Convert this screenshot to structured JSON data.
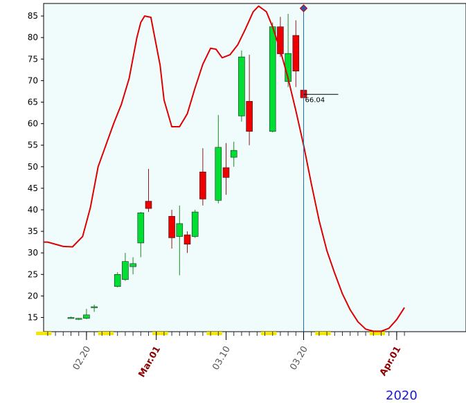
{
  "chart_data": {
    "type": "candlestick",
    "year_label": "2020",
    "ylim": [
      12,
      87
    ],
    "yticks": [
      15,
      20,
      25,
      30,
      35,
      40,
      45,
      50,
      55,
      60,
      65,
      70,
      75,
      80,
      85
    ],
    "x_tick_labels": [
      {
        "label": "02.20",
        "day": 20,
        "color": "#555555"
      },
      {
        "label": "Mar.01",
        "day": 29,
        "color": "#8b0000"
      },
      {
        "label": "03.10",
        "day": 38,
        "color": "#555555"
      },
      {
        "label": "03.20",
        "day": 48,
        "color": "#555555"
      },
      {
        "label": "Apr.01",
        "day": 60,
        "color": "#8b0000"
      }
    ],
    "cursor": {
      "day": 48,
      "value_label": "66.04",
      "value": 66.04
    },
    "colors": {
      "up": "#00dd33",
      "down": "#ee0000",
      "line": "#dd0000",
      "plot_bg": "#f0fcfc",
      "cursor": "#1a6fb0",
      "weekend": "#f5e600"
    },
    "candles": [
      {
        "day": 18,
        "open": 15.0,
        "high": 15.2,
        "low": 14.9,
        "close": 15.0
      },
      {
        "day": 19,
        "open": 14.6,
        "high": 14.9,
        "low": 14.4,
        "close": 14.8
      },
      {
        "day": 20,
        "open": 14.8,
        "high": 17.0,
        "low": 14.6,
        "close": 15.6
      },
      {
        "day": 21,
        "open": 17.3,
        "high": 18.0,
        "low": 16.3,
        "close": 17.5
      },
      {
        "day": 24,
        "open": 22.2,
        "high": 25.5,
        "low": 22.0,
        "close": 25.0
      },
      {
        "day": 25,
        "open": 23.8,
        "high": 30.0,
        "low": 23.5,
        "close": 28.0
      },
      {
        "day": 26,
        "open": 26.8,
        "high": 29.0,
        "low": 25.0,
        "close": 27.5
      },
      {
        "day": 27,
        "open": 32.3,
        "high": 39.5,
        "low": 29.0,
        "close": 39.3
      },
      {
        "day": 28,
        "open": 42.0,
        "high": 49.5,
        "low": 39.5,
        "close": 40.3
      },
      {
        "day": 31,
        "open": 38.5,
        "high": 40.0,
        "low": 31.0,
        "close": 33.5
      },
      {
        "day": 32,
        "open": 33.8,
        "high": 41.0,
        "low": 24.8,
        "close": 36.8
      },
      {
        "day": 33,
        "open": 34.2,
        "high": 35.0,
        "low": 30.0,
        "close": 32.0
      },
      {
        "day": 34,
        "open": 33.8,
        "high": 40.0,
        "low": 33.5,
        "close": 39.5
      },
      {
        "day": 35,
        "open": 48.8,
        "high": 54.3,
        "low": 41.0,
        "close": 42.5
      },
      {
        "day": 37,
        "open": 42.2,
        "high": 62.0,
        "low": 41.5,
        "close": 54.5
      },
      {
        "day": 38,
        "open": 49.8,
        "high": 55.5,
        "low": 43.5,
        "close": 47.5
      },
      {
        "day": 39,
        "open": 52.2,
        "high": 55.8,
        "low": 50.0,
        "close": 53.8
      },
      {
        "day": 40,
        "open": 61.8,
        "high": 77.0,
        "low": 60.5,
        "close": 75.5
      },
      {
        "day": 41,
        "open": 65.2,
        "high": 76.0,
        "low": 55.0,
        "close": 58.2
      },
      {
        "day": 44,
        "open": 58.2,
        "high": 83.5,
        "low": 58.0,
        "close": 82.5
      },
      {
        "day": 45,
        "open": 82.5,
        "high": 84.8,
        "low": 75.5,
        "close": 76.2
      },
      {
        "day": 46,
        "open": 69.8,
        "high": 85.5,
        "low": 68.5,
        "close": 76.3
      },
      {
        "day": 47,
        "open": 80.5,
        "high": 84.0,
        "low": 68.5,
        "close": 72.2
      },
      {
        "day": 48,
        "open": 67.8,
        "high": 68.0,
        "low": 66.0,
        "close": 66.0
      }
    ],
    "line": [
      {
        "day": 14.0,
        "value": 32.5
      },
      {
        "day": 15.0,
        "value": 32.5
      },
      {
        "day": 17.0,
        "value": 31.5
      },
      {
        "day": 18.2,
        "value": 31.4
      },
      {
        "day": 19.5,
        "value": 33.8
      },
      {
        "day": 20.5,
        "value": 40.5
      },
      {
        "day": 21.5,
        "value": 50.0
      },
      {
        "day": 22.5,
        "value": 55.0
      },
      {
        "day": 23.5,
        "value": 60.0
      },
      {
        "day": 24.5,
        "value": 64.5
      },
      {
        "day": 25.5,
        "value": 70.5
      },
      {
        "day": 26.5,
        "value": 80.0
      },
      {
        "day": 27.0,
        "value": 83.5
      },
      {
        "day": 27.5,
        "value": 85.0
      },
      {
        "day": 28.3,
        "value": 84.7
      },
      {
        "day": 29.5,
        "value": 73.5
      },
      {
        "day": 30.0,
        "value": 65.5
      },
      {
        "day": 31.0,
        "value": 59.3
      },
      {
        "day": 32.0,
        "value": 59.3
      },
      {
        "day": 33.0,
        "value": 62.3
      },
      {
        "day": 34.0,
        "value": 68.3
      },
      {
        "day": 35.0,
        "value": 73.8
      },
      {
        "day": 36.0,
        "value": 77.5
      },
      {
        "day": 36.7,
        "value": 77.3
      },
      {
        "day": 37.5,
        "value": 75.3
      },
      {
        "day": 38.5,
        "value": 76.0
      },
      {
        "day": 39.5,
        "value": 78.3
      },
      {
        "day": 40.5,
        "value": 82.0
      },
      {
        "day": 41.5,
        "value": 86.0
      },
      {
        "day": 42.2,
        "value": 87.3
      },
      {
        "day": 43.2,
        "value": 86.0
      },
      {
        "day": 44.0,
        "value": 82.5
      },
      {
        "day": 45.0,
        "value": 77.0
      },
      {
        "day": 46.0,
        "value": 70.5
      },
      {
        "day": 47.0,
        "value": 63.0
      },
      {
        "day": 48.0,
        "value": 55.0
      },
      {
        "day": 49.0,
        "value": 46.0
      },
      {
        "day": 50.0,
        "value": 37.5
      },
      {
        "day": 51.0,
        "value": 30.5
      },
      {
        "day": 52.0,
        "value": 25.3
      },
      {
        "day": 53.0,
        "value": 20.5
      },
      {
        "day": 54.0,
        "value": 16.8
      },
      {
        "day": 55.0,
        "value": 14.0
      },
      {
        "day": 56.0,
        "value": 12.3
      },
      {
        "day": 57.0,
        "value": 11.8
      },
      {
        "day": 58.0,
        "value": 11.8
      },
      {
        "day": 59.0,
        "value": 12.5
      },
      {
        "day": 60.0,
        "value": 14.5
      },
      {
        "day": 61.0,
        "value": 17.3
      }
    ],
    "weekend_days": [
      14,
      15,
      22,
      23,
      29,
      30,
      36,
      37,
      43,
      44,
      50,
      51,
      57,
      58
    ]
  }
}
